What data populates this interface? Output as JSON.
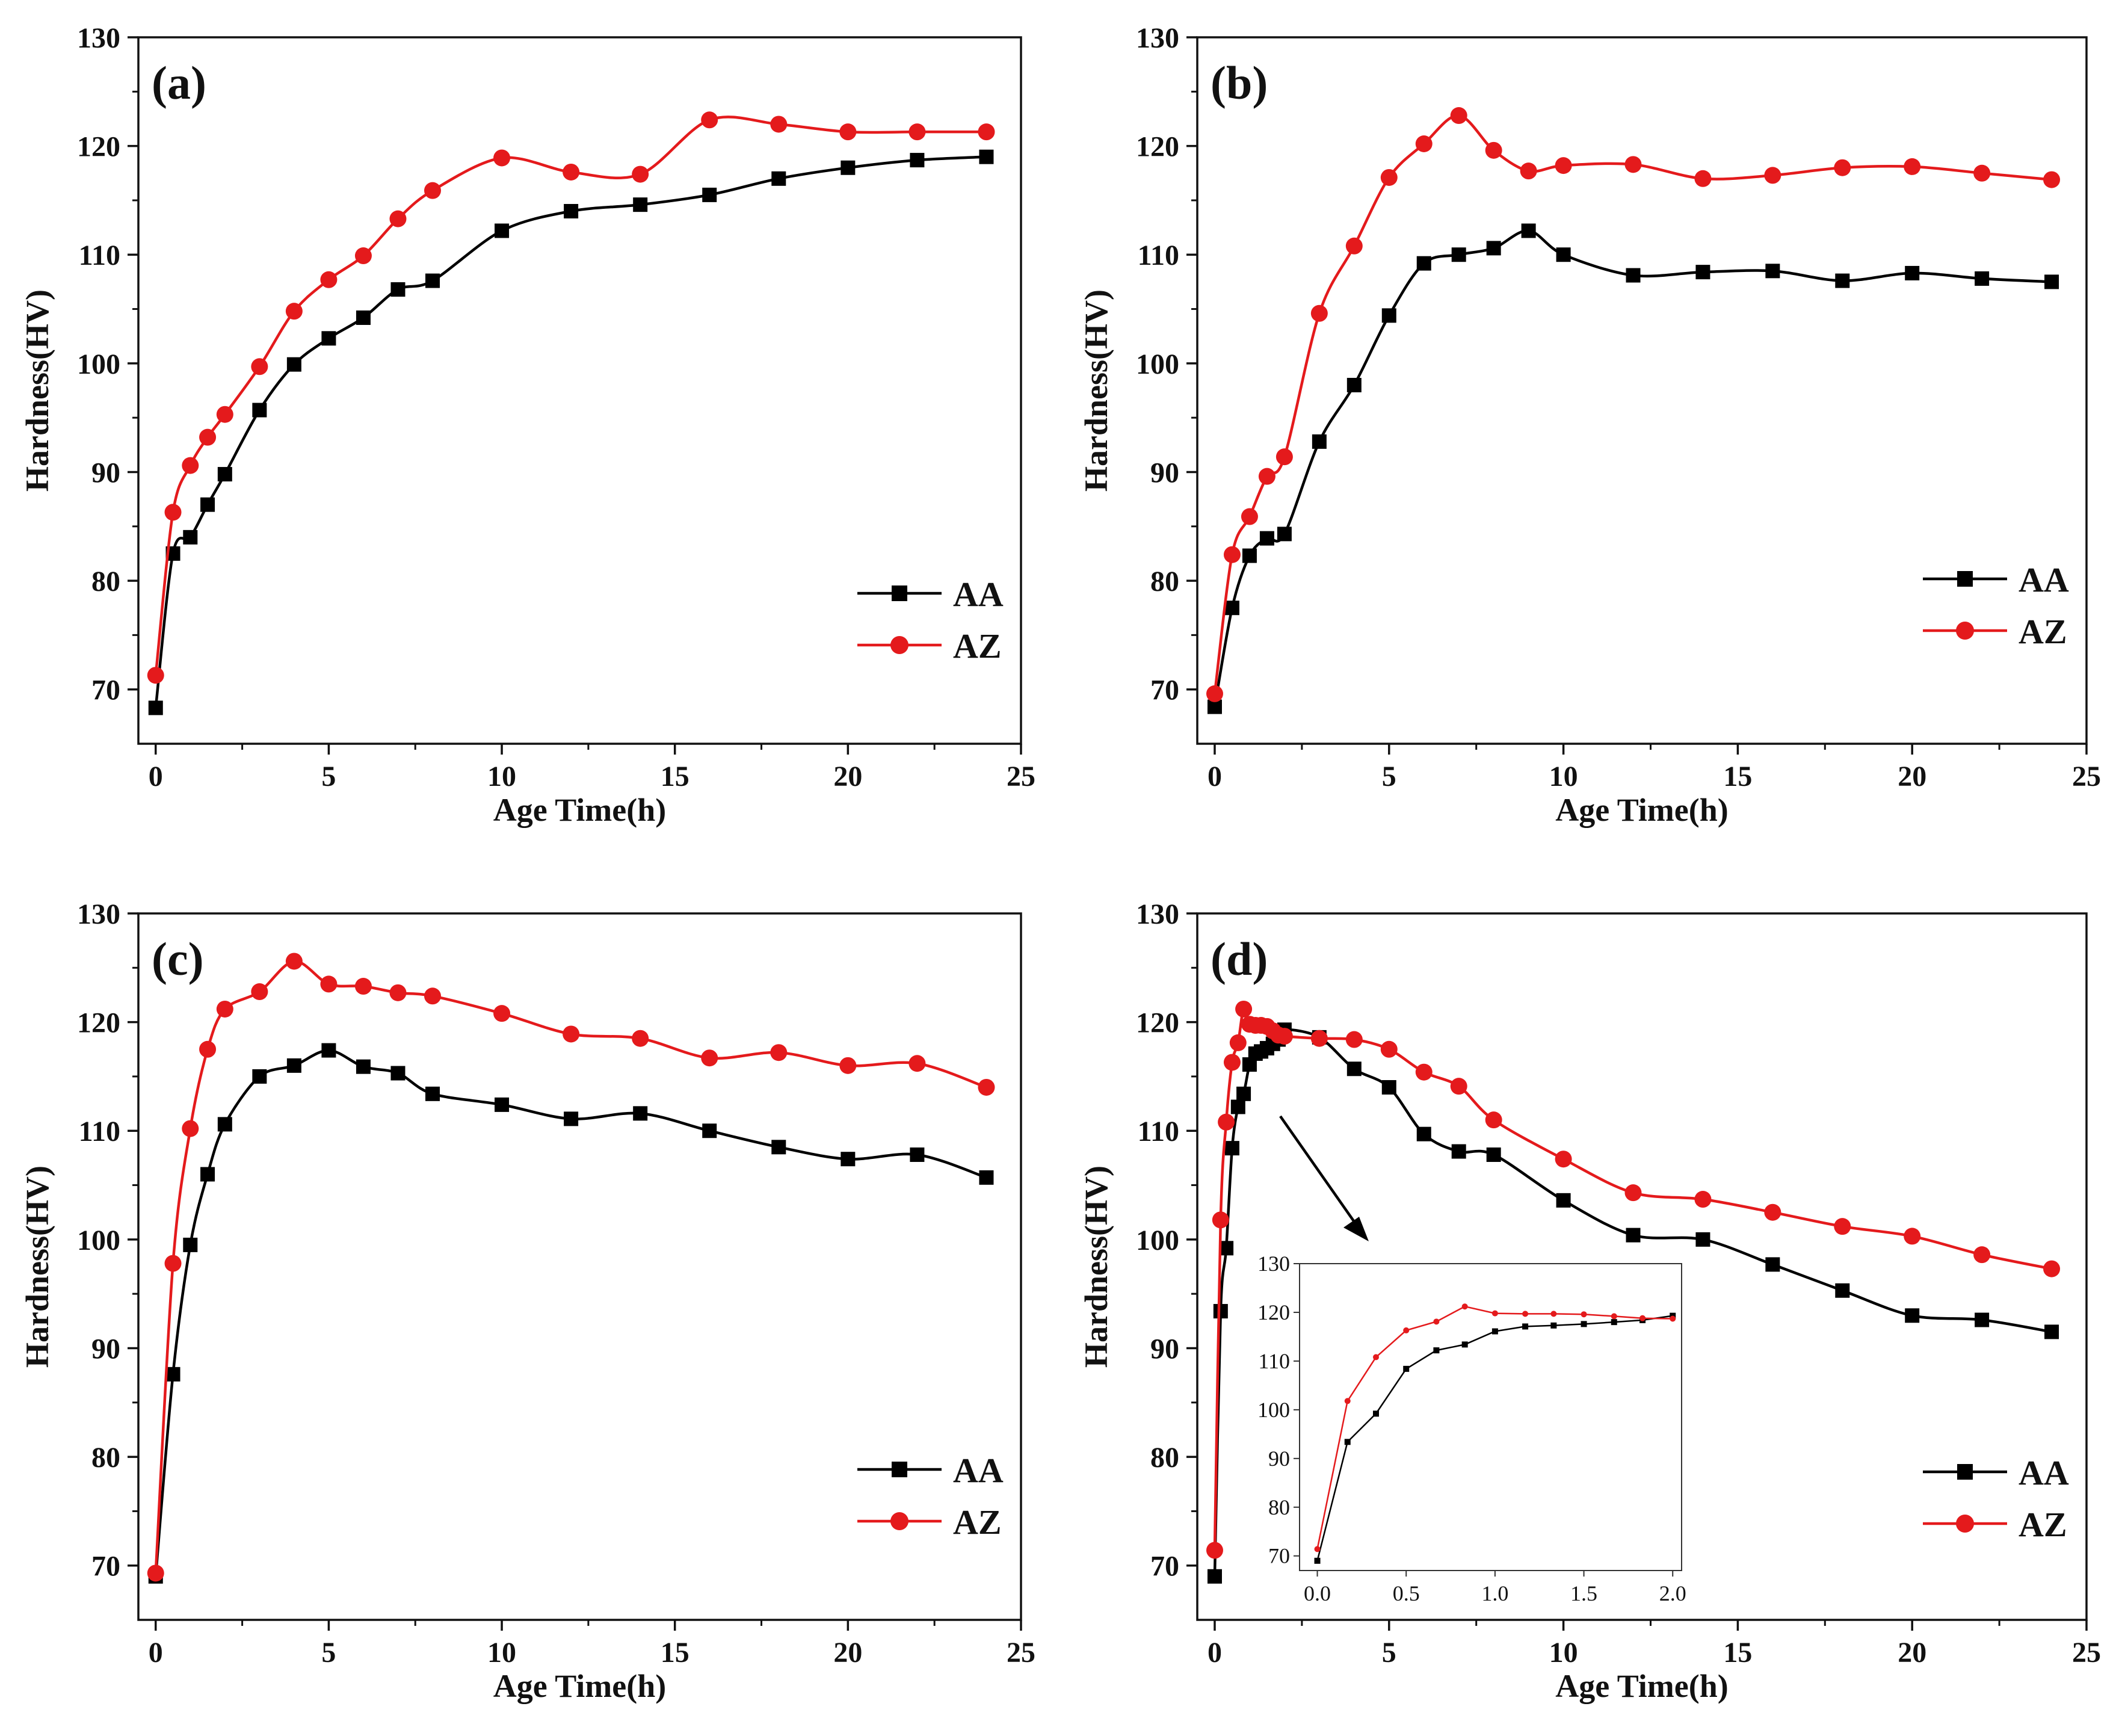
{
  "colors": {
    "AA": "#000000",
    "AZ": "#e41a1c",
    "axis": "#111111"
  },
  "chart_data": [
    {
      "type": "line",
      "panel_label": "(a)",
      "xlabel": "Age Time(h)",
      "ylabel": "Hardness(HV)",
      "xlim": [
        -0.5,
        25
      ],
      "ylim": [
        65,
        130
      ],
      "xticks": [
        "0",
        "5",
        "10",
        "15",
        "20",
        "25"
      ],
      "yticks": [
        "70",
        "80",
        "90",
        "100",
        "110",
        "120",
        "130"
      ],
      "legend_position": "bottom-right",
      "series": [
        {
          "name": "AA",
          "marker": "square",
          "x": [
            0,
            0.5,
            1,
            1.5,
            2,
            3,
            4,
            5,
            6,
            7,
            8,
            10,
            12,
            14,
            16,
            18,
            20,
            22,
            24
          ],
          "y": [
            68.3,
            82.5,
            84.0,
            87.0,
            89.8,
            95.7,
            99.9,
            102.3,
            104.2,
            106.8,
            107.6,
            112.2,
            114.0,
            114.6,
            115.5,
            117.0,
            118.0,
            118.7,
            119.0
          ]
        },
        {
          "name": "AZ",
          "marker": "circle",
          "x": [
            0,
            0.5,
            1,
            1.5,
            2,
            3,
            4,
            5,
            6,
            7,
            8,
            10,
            12,
            14,
            16,
            18,
            20,
            22,
            24
          ],
          "y": [
            71.3,
            86.3,
            90.6,
            93.2,
            95.3,
            99.7,
            104.8,
            107.7,
            109.9,
            113.3,
            115.9,
            118.9,
            117.6,
            117.4,
            122.4,
            122.0,
            121.3,
            121.3,
            121.3
          ]
        }
      ]
    },
    {
      "type": "line",
      "panel_label": "(b)",
      "xlabel": "Age Time(h)",
      "ylabel": "Hardness(HV)",
      "xlim": [
        -0.5,
        25
      ],
      "ylim": [
        65,
        130
      ],
      "xticks": [
        "0",
        "5",
        "10",
        "15",
        "20",
        "25"
      ],
      "yticks": [
        "70",
        "80",
        "90",
        "100",
        "110",
        "120",
        "130"
      ],
      "legend_position": "bottom-right",
      "series": [
        {
          "name": "AA",
          "marker": "square",
          "x": [
            0,
            0.5,
            1,
            1.5,
            2,
            3,
            4,
            5,
            6,
            7,
            8,
            9,
            10,
            12,
            14,
            16,
            18,
            20,
            22,
            24
          ],
          "y": [
            68.4,
            77.5,
            82.3,
            83.9,
            84.3,
            92.8,
            98.0,
            104.4,
            109.2,
            110.0,
            110.6,
            112.2,
            110.0,
            108.1,
            108.4,
            108.5,
            107.6,
            108.3,
            107.8,
            107.5
          ]
        },
        {
          "name": "AZ",
          "marker": "circle",
          "x": [
            0,
            0.5,
            1,
            1.5,
            2,
            3,
            4,
            5,
            6,
            7,
            8,
            9,
            10,
            12,
            14,
            16,
            18,
            20,
            22,
            24
          ],
          "y": [
            69.6,
            82.4,
            85.9,
            89.6,
            91.4,
            104.6,
            110.8,
            117.1,
            120.2,
            122.8,
            119.6,
            117.7,
            118.2,
            118.3,
            117.0,
            117.3,
            118.0,
            118.1,
            117.5,
            116.9
          ]
        }
      ]
    },
    {
      "type": "line",
      "panel_label": "(c)",
      "xlabel": "Age Time(h)",
      "ylabel": "Hardness(HV)",
      "xlim": [
        -0.5,
        25
      ],
      "ylim": [
        65,
        130
      ],
      "xticks": [
        "0",
        "5",
        "10",
        "15",
        "20",
        "25"
      ],
      "yticks": [
        "70",
        "80",
        "90",
        "100",
        "110",
        "120",
        "130"
      ],
      "legend_position": "bottom-right",
      "series": [
        {
          "name": "AA",
          "marker": "square",
          "x": [
            0,
            0.5,
            1,
            1.5,
            2,
            3,
            4,
            5,
            6,
            7,
            8,
            10,
            12,
            14,
            16,
            18,
            20,
            22,
            24
          ],
          "y": [
            69.0,
            87.6,
            99.5,
            106.0,
            110.6,
            115.0,
            116.0,
            117.4,
            115.9,
            115.3,
            113.4,
            112.4,
            111.1,
            111.6,
            110.0,
            108.5,
            107.4,
            107.8,
            105.7
          ]
        },
        {
          "name": "AZ",
          "marker": "circle",
          "x": [
            0,
            0.5,
            1,
            1.5,
            2,
            3,
            4,
            5,
            6,
            7,
            8,
            10,
            12,
            14,
            16,
            18,
            20,
            22,
            24
          ],
          "y": [
            69.3,
            97.8,
            110.2,
            117.5,
            121.2,
            122.8,
            125.6,
            123.5,
            123.3,
            122.7,
            122.4,
            120.8,
            118.9,
            118.5,
            116.7,
            117.2,
            116.0,
            116.2,
            114.0
          ]
        }
      ]
    },
    {
      "type": "line",
      "panel_label": "(d)",
      "xlabel": "Age Time(h)",
      "ylabel": "Hardness(HV)",
      "xlim": [
        -0.5,
        25
      ],
      "ylim": [
        65,
        130
      ],
      "xticks": [
        "0",
        "5",
        "10",
        "15",
        "20",
        "25"
      ],
      "yticks": [
        "70",
        "80",
        "90",
        "100",
        "110",
        "120",
        "130"
      ],
      "legend_position": "bottom-right",
      "series": [
        {
          "name": "AA",
          "marker": "square",
          "x": [
            0,
            0.17,
            0.33,
            0.5,
            0.67,
            0.83,
            1.0,
            1.17,
            1.33,
            1.5,
            1.67,
            1.83,
            2.0,
            3,
            4,
            5,
            6,
            7,
            8,
            10,
            12,
            14,
            16,
            18,
            20,
            22,
            24
          ],
          "y": [
            69.0,
            93.4,
            99.2,
            108.4,
            112.2,
            113.4,
            116.1,
            117.1,
            117.3,
            117.6,
            118.0,
            118.4,
            119.3,
            118.6,
            115.7,
            114.0,
            109.7,
            108.1,
            107.8,
            103.6,
            100.4,
            100.0,
            97.7,
            95.3,
            93.0,
            92.6,
            91.5
          ]
        },
        {
          "name": "AZ",
          "marker": "circle",
          "x": [
            0,
            0.17,
            0.33,
            0.5,
            0.67,
            0.83,
            1.0,
            1.17,
            1.33,
            1.5,
            1.67,
            1.83,
            2.0,
            3,
            4,
            5,
            6,
            7,
            8,
            10,
            12,
            14,
            16,
            18,
            20,
            22,
            24
          ],
          "y": [
            71.4,
            101.8,
            110.8,
            116.3,
            118.1,
            121.2,
            119.8,
            119.7,
            119.7,
            119.6,
            119.2,
            118.8,
            118.7,
            118.5,
            118.4,
            117.5,
            115.4,
            114.1,
            111.0,
            107.4,
            104.3,
            103.7,
            102.5,
            101.2,
            100.3,
            98.6,
            97.3
          ]
        }
      ],
      "inset": {
        "xlim": [
          -0.1,
          2.05
        ],
        "ylim": [
          67,
          130
        ],
        "xticks": [
          "0.0",
          "0.5",
          "1.0",
          "1.5",
          "2.0"
        ],
        "yticks": [
          "70",
          "80",
          "90",
          "100",
          "110",
          "120",
          "130"
        ],
        "series": [
          {
            "name": "AA",
            "marker": "square",
            "x": [
              0,
              0.17,
              0.33,
              0.5,
              0.67,
              0.83,
              1.0,
              1.17,
              1.33,
              1.5,
              1.67,
              1.83,
              2.0
            ],
            "y": [
              69.0,
              93.4,
              99.2,
              108.4,
              112.2,
              113.4,
              116.1,
              117.1,
              117.3,
              117.6,
              118.0,
              118.4,
              119.3
            ]
          },
          {
            "name": "AZ",
            "marker": "circle",
            "x": [
              0,
              0.17,
              0.33,
              0.5,
              0.67,
              0.83,
              1.0,
              1.17,
              1.33,
              1.5,
              1.67,
              1.83,
              2.0
            ],
            "y": [
              71.4,
              101.8,
              110.8,
              116.3,
              118.1,
              121.2,
              119.8,
              119.7,
              119.7,
              119.6,
              119.2,
              118.8,
              118.7
            ]
          }
        ]
      }
    }
  ]
}
